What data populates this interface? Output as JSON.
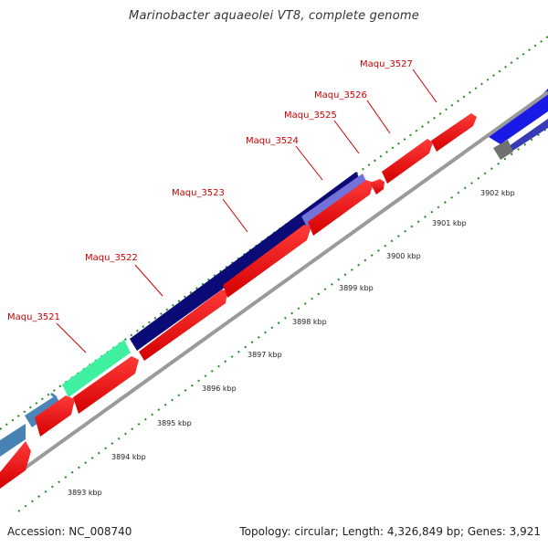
{
  "title": "Marinobacter aquaeolei VT8, complete genome",
  "footer": {
    "accession": "Accession: NC_008740",
    "topology": "Topology: circular; Length: 4,326,849 bp; Genes: 3,921"
  },
  "colors": {
    "forward_gene": "#ff0000",
    "reverse_gene_dark": "#0a0a78",
    "reverse_gene_blue": "#2020e0",
    "reverse_gene_steel": "#4682b4",
    "reverse_gene_mint": "#40f0a0",
    "reverse_gene_lavender": "#7070d8",
    "unknown_gene": "#808080",
    "backbone": "#999999",
    "tick": "#228b22",
    "label": "#cc0000"
  },
  "gene_labels": [
    "Maqu_3521",
    "Maqu_3522",
    "Maqu_3523",
    "Maqu_3524",
    "Maqu_3525",
    "Maqu_3526",
    "Maqu_3527"
  ],
  "scale_labels": [
    "3893 kbp",
    "3894 kbp",
    "3895 kbp",
    "3896 kbp",
    "3897 kbp",
    "3898 kbp",
    "3899 kbp",
    "3900 kbp",
    "3901 kbp",
    "3902 kbp"
  ]
}
